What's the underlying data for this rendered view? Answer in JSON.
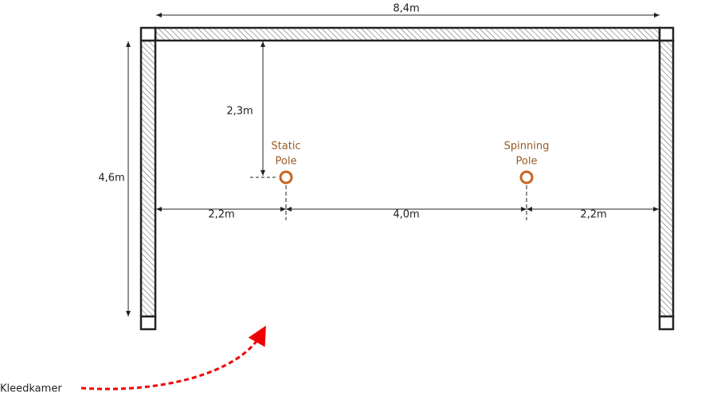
{
  "dimensions": {
    "width": "8,4m",
    "height": "4,6m",
    "pole_offset_top": "2,3m",
    "left_gap": "2,2m",
    "pole_gap": "4,0m",
    "right_gap": "2,2m"
  },
  "poles": [
    {
      "label_lines": [
        "Static",
        "Pole"
      ]
    },
    {
      "label_lines": [
        "Spinning",
        "Pole"
      ]
    }
  ],
  "entrance": {
    "label": "Kleedkamer"
  }
}
